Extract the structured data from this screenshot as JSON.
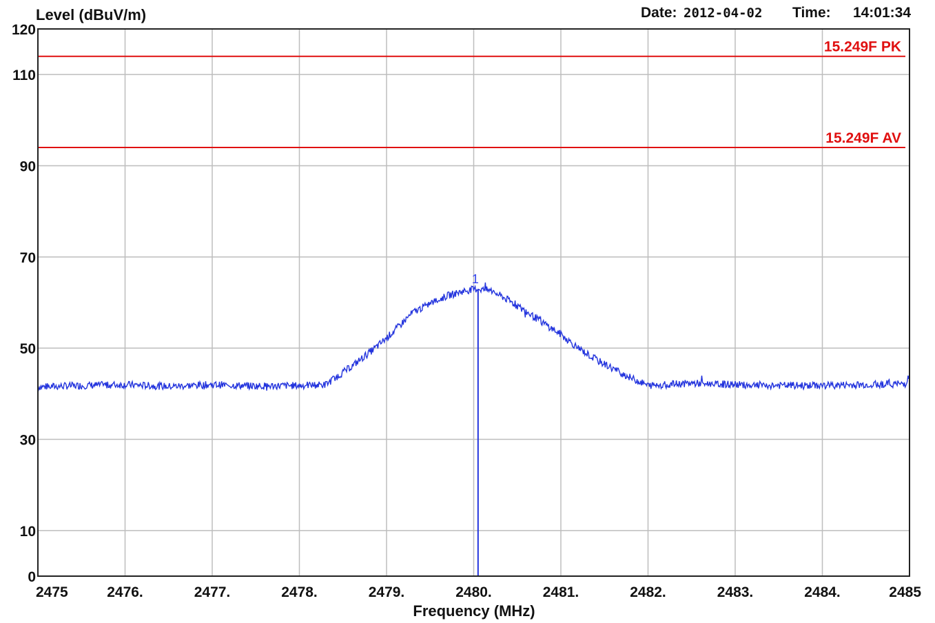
{
  "header": {
    "date_label": "Date:",
    "date_value": "2012-04-02",
    "time_label": "Time:",
    "time_value": "14:01:34"
  },
  "chart_data": {
    "type": "line",
    "ylabel": "Level (dBuV/m)",
    "xlabel": "Frequency (MHz)",
    "xlim": [
      2475,
      2485
    ],
    "ylim": [
      0,
      120
    ],
    "grid": true,
    "y_ticks": [
      {
        "value": 0,
        "label": "0"
      },
      {
        "value": 10,
        "label": "10"
      },
      {
        "value": 30,
        "label": "30"
      },
      {
        "value": 50,
        "label": "50"
      },
      {
        "value": 70,
        "label": "70"
      },
      {
        "value": 90,
        "label": "90"
      },
      {
        "value": 110,
        "label": "110"
      },
      {
        "value": 120,
        "label": "120"
      }
    ],
    "y_gridlines": [
      10,
      30,
      50,
      70,
      90,
      110
    ],
    "x_ticks": [
      {
        "value": 2475,
        "label": "2475"
      },
      {
        "value": 2476,
        "label": "2476."
      },
      {
        "value": 2477,
        "label": "2477."
      },
      {
        "value": 2478,
        "label": "2478."
      },
      {
        "value": 2479,
        "label": "2479."
      },
      {
        "value": 2480,
        "label": "2480."
      },
      {
        "value": 2481,
        "label": "2481."
      },
      {
        "value": 2482,
        "label": "2482."
      },
      {
        "value": 2483,
        "label": "2483."
      },
      {
        "value": 2484,
        "label": "2484."
      },
      {
        "value": 2485,
        "label": "2485"
      }
    ],
    "limit_lines": [
      {
        "label": "15.249F PK",
        "value": 114,
        "color": "#e01010"
      },
      {
        "label": "15.249F AV",
        "value": 94,
        "color": "#e01010"
      }
    ],
    "series": [
      {
        "color": "#2233dd",
        "x": [
          2475.0,
          2475.5,
          2476.0,
          2476.5,
          2477.0,
          2477.5,
          2478.0,
          2478.3,
          2478.6,
          2478.9,
          2479.1,
          2479.3,
          2479.5,
          2479.7,
          2479.9,
          2480.05,
          2480.2,
          2480.4,
          2480.6,
          2480.8,
          2481.0,
          2481.2,
          2481.4,
          2481.6,
          2481.8,
          2482.0,
          2482.5,
          2483.0,
          2483.5,
          2484.0,
          2484.5,
          2484.95,
          2485.0
        ],
        "y": [
          41.5,
          41.8,
          42.0,
          41.6,
          42.0,
          41.7,
          41.8,
          42.0,
          46.0,
          50.5,
          54.0,
          57.8,
          59.8,
          61.5,
          62.6,
          63.0,
          62.6,
          60.5,
          58.0,
          55.5,
          53.0,
          50.0,
          47.5,
          45.5,
          43.5,
          41.8,
          42.3,
          42.0,
          41.8,
          41.8,
          42.0,
          42.2,
          44.0
        ],
        "noise_db": 0.8
      }
    ],
    "markers": [
      {
        "label": "1",
        "x": 2480.05
      }
    ]
  }
}
